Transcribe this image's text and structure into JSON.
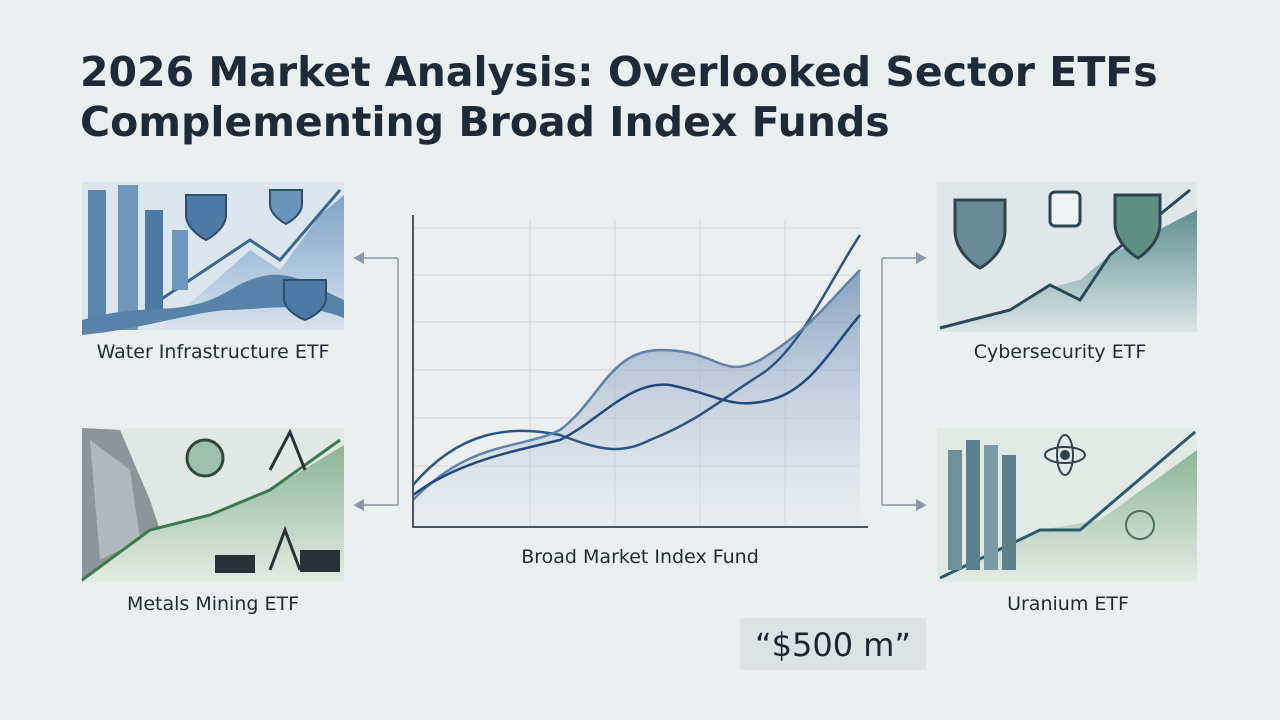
{
  "title_lines": [
    "2026 Market Analysis: Overlooked Sector ETFs",
    "Complementing Broad Index Funds"
  ],
  "panels": [
    {
      "label": "Water Infrastructure ETF"
    },
    {
      "label": "Metals Mining ETF"
    },
    {
      "label": "Cybersecurity ETF"
    },
    {
      "label": "Uranium ETF"
    }
  ],
  "center": {
    "label": "Broad Market Index Fund"
  },
  "callout": "“$500 m”"
}
